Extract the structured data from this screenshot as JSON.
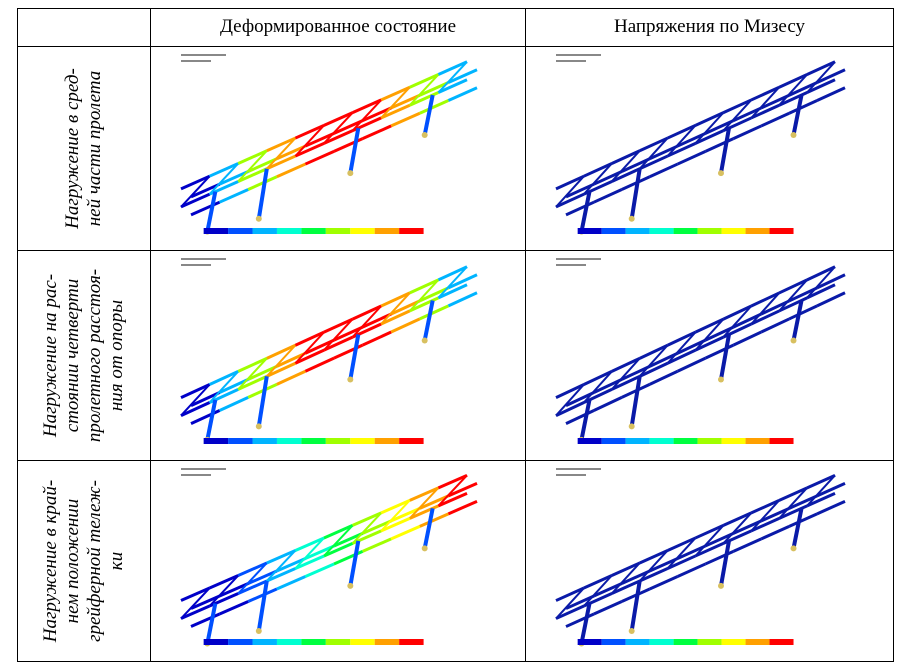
{
  "table": {
    "columns": [
      "Деформированное состояние",
      "Напряжения по Мизесу"
    ],
    "rows": [
      {
        "label_lines": [
          "Нагружение в сред-",
          "ней части пролета"
        ]
      },
      {
        "label_lines": [
          "Нагружение на рас-",
          "стоянии четверти",
          "пролетного расстоя-",
          "ния от опоры"
        ]
      },
      {
        "label_lines": [
          "Нагружение в край-",
          "нем положении",
          "грейферной тележ-",
          "ки"
        ]
      }
    ]
  }
}
